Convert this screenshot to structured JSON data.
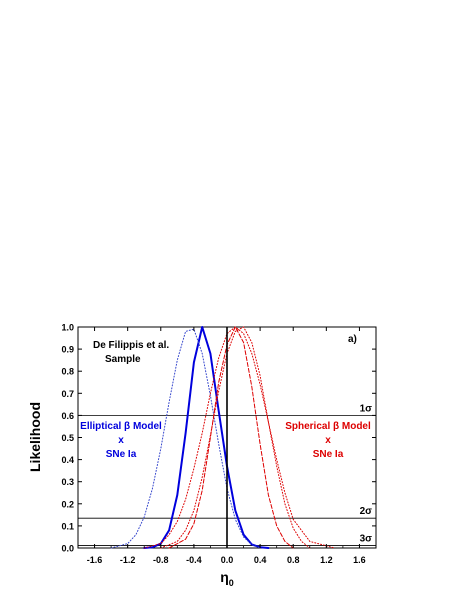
{
  "chart_data": {
    "type": "line",
    "xlabel_main": "η",
    "xlabel_sub": "0",
    "ylabel": "Likelihood",
    "xlim": [
      -1.8,
      1.8
    ],
    "ylim": [
      0.0,
      1.0
    ],
    "x_ticks": [
      -1.6,
      -1.2,
      -0.8,
      -0.4,
      0.0,
      0.4,
      0.8,
      1.2,
      1.6
    ],
    "x_tick_labels": [
      "-1.6",
      "-1.2",
      "-0.8",
      "-0.4",
      "0.0",
      "0.4",
      "0.8",
      "1.2",
      "1.6"
    ],
    "y_ticks": [
      0.0,
      0.1,
      0.2,
      0.3,
      0.4,
      0.5,
      0.6,
      0.7,
      0.8,
      0.9,
      1.0
    ],
    "y_tick_labels": [
      "0.0",
      "0.1",
      "0.2",
      "0.3",
      "0.4",
      "0.5",
      "0.6",
      "0.7",
      "0.8",
      "0.9",
      "1.0"
    ],
    "panel_label": "a)",
    "annotation_sample": [
      "De Filippis et al.",
      "Sample"
    ],
    "annotation_elliptical": [
      "Elliptical β Model",
      "x",
      "SNe Ia"
    ],
    "annotation_spherical": [
      "Spherical β Model",
      "x",
      "SNe Ia"
    ],
    "confidence_levels": [
      {
        "label": "1σ",
        "y": 0.6
      },
      {
        "label": "2σ",
        "y": 0.135
      },
      {
        "label": "3σ",
        "y": 0.011
      }
    ],
    "vertical_line_x": 0.0,
    "series": [
      {
        "color": "#0000dd",
        "style": "solid",
        "width": 2.0,
        "x": [
          -1.0,
          -0.9,
          -0.8,
          -0.7,
          -0.6,
          -0.5,
          -0.4,
          -0.3,
          -0.2,
          -0.1,
          0.0,
          0.1,
          0.2,
          0.3,
          0.4,
          0.5
        ],
        "y": [
          0.0,
          0.003,
          0.02,
          0.08,
          0.24,
          0.52,
          0.84,
          1.0,
          0.88,
          0.62,
          0.37,
          0.17,
          0.06,
          0.016,
          0.003,
          0.0
        ]
      },
      {
        "color": "#3344cc",
        "style": "dotted",
        "width": 1.0,
        "x": [
          -1.4,
          -1.2,
          -1.1,
          -1.0,
          -0.9,
          -0.8,
          -0.7,
          -0.6,
          -0.5,
          -0.4,
          -0.3,
          -0.2,
          -0.1,
          0.0,
          0.1,
          0.2,
          0.3,
          0.4
        ],
        "y": [
          0.0,
          0.02,
          0.06,
          0.14,
          0.27,
          0.45,
          0.66,
          0.85,
          0.98,
          0.99,
          0.88,
          0.69,
          0.47,
          0.27,
          0.13,
          0.05,
          0.015,
          0.0
        ]
      },
      {
        "color": "#dd0000",
        "style": "dotted",
        "width": 1.0,
        "x": [
          -0.8,
          -0.6,
          -0.5,
          -0.4,
          -0.3,
          -0.2,
          -0.1,
          0.0,
          0.1,
          0.2,
          0.3,
          0.4,
          0.5,
          0.6,
          0.7,
          0.8,
          0.9,
          1.0
        ],
        "y": [
          0.0,
          0.03,
          0.08,
          0.17,
          0.32,
          0.51,
          0.71,
          0.88,
          0.98,
          1.0,
          0.93,
          0.78,
          0.57,
          0.37,
          0.2,
          0.09,
          0.03,
          0.0
        ]
      },
      {
        "color": "#dd0000",
        "style": "dashed",
        "width": 1.0,
        "x": [
          -0.7,
          -0.5,
          -0.4,
          -0.3,
          -0.2,
          -0.1,
          0.0,
          0.1,
          0.2,
          0.3,
          0.4,
          0.5,
          0.6,
          0.7,
          0.8
        ],
        "y": [
          0.0,
          0.04,
          0.11,
          0.26,
          0.5,
          0.75,
          0.92,
          1.0,
          0.93,
          0.73,
          0.47,
          0.24,
          0.1,
          0.03,
          0.0
        ]
      },
      {
        "color": "#dd0000",
        "style": "dotted",
        "width": 1.0,
        "x": [
          -1.0,
          -0.8,
          -0.7,
          -0.6,
          -0.5,
          -0.4,
          -0.3,
          -0.2,
          -0.1,
          0.0,
          0.1,
          0.2,
          0.3,
          0.4,
          0.5,
          0.6,
          0.7,
          0.8,
          1.0,
          1.3
        ],
        "y": [
          0.0,
          0.02,
          0.06,
          0.12,
          0.22,
          0.36,
          0.52,
          0.7,
          0.86,
          0.97,
          1.0,
          0.97,
          0.88,
          0.74,
          0.57,
          0.4,
          0.25,
          0.13,
          0.03,
          0.0
        ]
      }
    ]
  }
}
